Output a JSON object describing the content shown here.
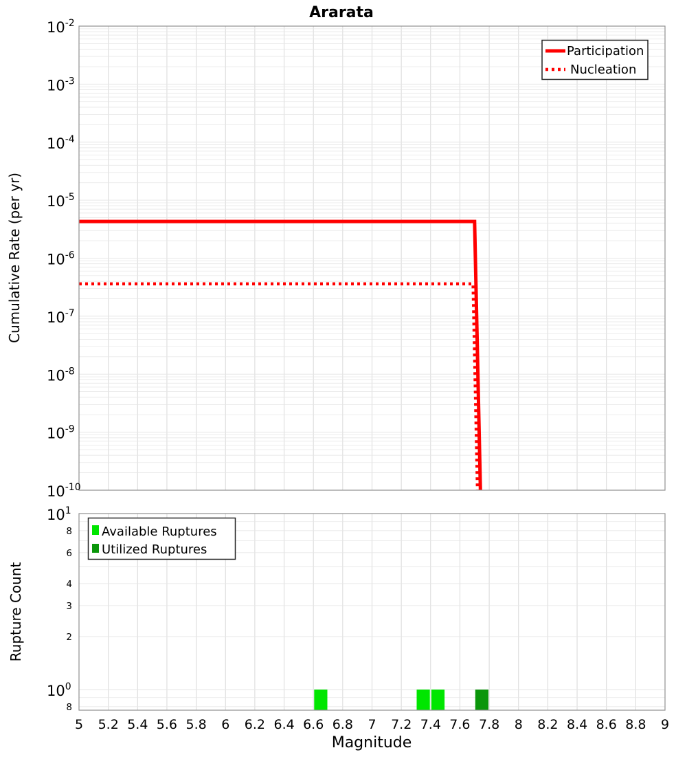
{
  "figure": {
    "title": "Ararata",
    "background": "#ffffff",
    "accent_red": "#ff0000",
    "available_green": "#00e600",
    "utilized_green": "#0a960a",
    "grid_color": "#e6e6e6",
    "vgrid_color": "#d8d8d8"
  },
  "chart_data": [
    {
      "type": "line",
      "title": "Ararata",
      "ylabel": "Cumulative Rate (per yr)",
      "xlabel": "Magnitude",
      "x_range": [
        5,
        9
      ],
      "y_scale": "log",
      "y_range": [
        1e-10,
        0.01
      ],
      "grid": true,
      "legend_position": "top-right",
      "y_ticks": {
        "base": "10",
        "exponents": [
          "-2",
          "-3",
          "-4",
          "-5",
          "-6",
          "-7",
          "-8",
          "-9",
          "-10"
        ]
      },
      "series": [
        {
          "name": "Participation",
          "color": "#ff0000",
          "style": "solid",
          "width": 5,
          "points": [
            [
              5.0,
              4.3e-06
            ],
            [
              7.7,
              4.3e-06
            ],
            [
              7.74,
              1e-10
            ]
          ]
        },
        {
          "name": "Nucleation",
          "color": "#ff0000",
          "style": "dotted",
          "width": 4.5,
          "points": [
            [
              5.0,
              3.6e-07
            ],
            [
              7.69,
              3.6e-07
            ],
            [
              7.72,
              1e-10
            ]
          ]
        }
      ]
    },
    {
      "type": "bar",
      "ylabel": "Rupture Count",
      "xlabel": "Magnitude",
      "x_range": [
        5,
        9
      ],
      "y_scale": "log",
      "y_range": [
        0.76,
        10
      ],
      "grid": true,
      "legend_position": "top-left",
      "y_major_ticks": [
        {
          "base": "10",
          "exp": "1",
          "value": 10
        },
        {
          "base": "10",
          "exp": "0",
          "value": 1
        }
      ],
      "y_minor_ticks": [
        {
          "label": "8",
          "value": 8
        },
        {
          "label": "6",
          "value": 6
        },
        {
          "label": "4",
          "value": 4
        },
        {
          "label": "3",
          "value": 3
        },
        {
          "label": "2",
          "value": 2
        },
        {
          "label": "8",
          "value": 0.8
        }
      ],
      "x_tick_step": 0.2,
      "x_tick_labels": [
        "5",
        "5.2",
        "5.4",
        "5.6",
        "5.8",
        "6",
        "6.2",
        "6.4",
        "6.6",
        "6.8",
        "7",
        "7.2",
        "7.4",
        "7.6",
        "7.8",
        "8",
        "8.2",
        "8.4",
        "8.6",
        "8.8",
        "9"
      ],
      "bar_width_mag": 0.09,
      "series": [
        {
          "name": "Available Ruptures",
          "color": "#00e600",
          "bars": [
            {
              "mag": 6.65,
              "count": 1
            },
            {
              "mag": 7.35,
              "count": 1
            },
            {
              "mag": 7.45,
              "count": 1
            }
          ]
        },
        {
          "name": "Utilized Ruptures",
          "color": "#0a960a",
          "bars": [
            {
              "mag": 7.75,
              "count": 1
            }
          ]
        }
      ]
    }
  ]
}
